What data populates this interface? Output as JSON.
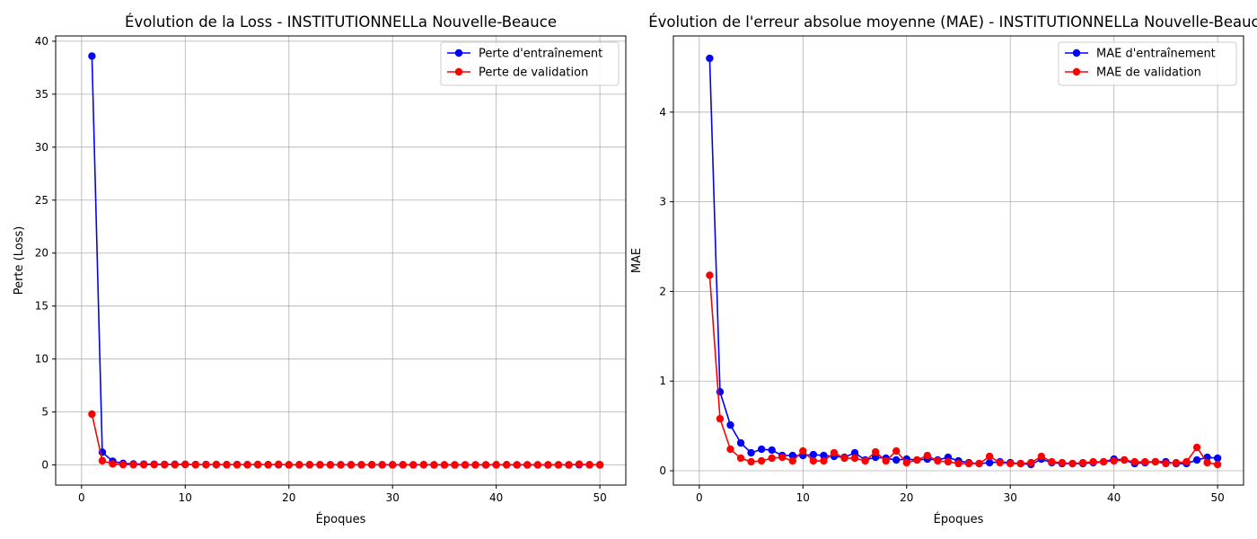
{
  "chart_data": [
    {
      "type": "line",
      "title": "Évolution de la Loss - INSTITUTIONNELLa Nouvelle-Beauce",
      "xlabel": "Époques",
      "ylabel": "Perte (Loss)",
      "xlim": [
        -2.5,
        52.5
      ],
      "ylim": [
        -1.9,
        40.5
      ],
      "xticks": [
        0,
        10,
        20,
        30,
        40,
        50
      ],
      "yticks": [
        0,
        5,
        10,
        15,
        20,
        25,
        30,
        35,
        40
      ],
      "grid": true,
      "legend_position": "top-right",
      "x": [
        1,
        2,
        3,
        4,
        5,
        6,
        7,
        8,
        9,
        10,
        11,
        12,
        13,
        14,
        15,
        16,
        17,
        18,
        19,
        20,
        21,
        22,
        23,
        24,
        25,
        26,
        27,
        28,
        29,
        30,
        31,
        32,
        33,
        34,
        35,
        36,
        37,
        38,
        39,
        40,
        41,
        42,
        43,
        44,
        45,
        46,
        47,
        48,
        49,
        50
      ],
      "series": [
        {
          "name": "Perte d'entraînement",
          "color": "#0000ff",
          "values": [
            38.6,
            1.2,
            0.35,
            0.15,
            0.1,
            0.08,
            0.07,
            0.05,
            0.06,
            0.05,
            0.04,
            0.04,
            0.03,
            0.03,
            0.04,
            0.03,
            0.03,
            0.03,
            0.02,
            0.02,
            0.02,
            0.02,
            0.02,
            0.02,
            0.02,
            0.02,
            0.02,
            0.02,
            0.02,
            0.02,
            0.02,
            0.01,
            0.02,
            0.01,
            0.01,
            0.01,
            0.01,
            0.01,
            0.01,
            0.02,
            0.02,
            0.01,
            0.01,
            0.01,
            0.01,
            0.01,
            0.01,
            0.02,
            0.02,
            0.02
          ]
        },
        {
          "name": "Perte de validation",
          "color": "#ff0000",
          "values": [
            4.8,
            0.4,
            0.1,
            0.04,
            0.03,
            0.03,
            0.04,
            0.03,
            0.03,
            0.06,
            0.02,
            0.03,
            0.05,
            0.03,
            0.02,
            0.02,
            0.05,
            0.02,
            0.06,
            0.01,
            0.02,
            0.03,
            0.02,
            0.01,
            0.01,
            0.01,
            0.01,
            0.03,
            0.01,
            0.01,
            0.01,
            0.01,
            0.03,
            0.01,
            0.01,
            0.01,
            0.01,
            0.01,
            0.01,
            0.02,
            0.02,
            0.01,
            0.01,
            0.01,
            0.01,
            0.01,
            0.01,
            0.08,
            0.01,
            0.01
          ]
        }
      ]
    },
    {
      "type": "line",
      "title": "Évolution de l'erreur absolue moyenne (MAE) - INSTITUTIONNELLa Nouvelle-Beauce",
      "xlabel": "Époques",
      "ylabel": "MAE",
      "xlim": [
        -2.5,
        52.5
      ],
      "ylim": [
        -0.16,
        4.85
      ],
      "xticks": [
        0,
        10,
        20,
        30,
        40,
        50
      ],
      "yticks": [
        0,
        1,
        2,
        3,
        4
      ],
      "grid": true,
      "legend_position": "top-right",
      "x": [
        1,
        2,
        3,
        4,
        5,
        6,
        7,
        8,
        9,
        10,
        11,
        12,
        13,
        14,
        15,
        16,
        17,
        18,
        19,
        20,
        21,
        22,
        23,
        24,
        25,
        26,
        27,
        28,
        29,
        30,
        31,
        32,
        33,
        34,
        35,
        36,
        37,
        38,
        39,
        40,
        41,
        42,
        43,
        44,
        45,
        46,
        47,
        48,
        49,
        50
      ],
      "series": [
        {
          "name": "MAE d'entraînement",
          "color": "#0000ff",
          "values": [
            4.6,
            0.88,
            0.51,
            0.31,
            0.2,
            0.24,
            0.23,
            0.17,
            0.17,
            0.17,
            0.18,
            0.17,
            0.16,
            0.15,
            0.2,
            0.12,
            0.15,
            0.14,
            0.12,
            0.13,
            0.12,
            0.13,
            0.12,
            0.15,
            0.11,
            0.09,
            0.08,
            0.09,
            0.1,
            0.09,
            0.08,
            0.07,
            0.13,
            0.09,
            0.08,
            0.08,
            0.08,
            0.09,
            0.1,
            0.13,
            0.12,
            0.08,
            0.09,
            0.1,
            0.1,
            0.08,
            0.08,
            0.12,
            0.15,
            0.14
          ]
        },
        {
          "name": "MAE de validation",
          "color": "#ff0000",
          "values": [
            2.18,
            0.58,
            0.24,
            0.14,
            0.1,
            0.11,
            0.14,
            0.15,
            0.11,
            0.22,
            0.11,
            0.11,
            0.2,
            0.14,
            0.14,
            0.11,
            0.21,
            0.11,
            0.22,
            0.09,
            0.12,
            0.17,
            0.11,
            0.1,
            0.08,
            0.08,
            0.08,
            0.16,
            0.09,
            0.08,
            0.08,
            0.09,
            0.16,
            0.1,
            0.09,
            0.08,
            0.09,
            0.1,
            0.1,
            0.11,
            0.12,
            0.1,
            0.1,
            0.1,
            0.08,
            0.09,
            0.1,
            0.26,
            0.09,
            0.07
          ]
        }
      ]
    }
  ]
}
